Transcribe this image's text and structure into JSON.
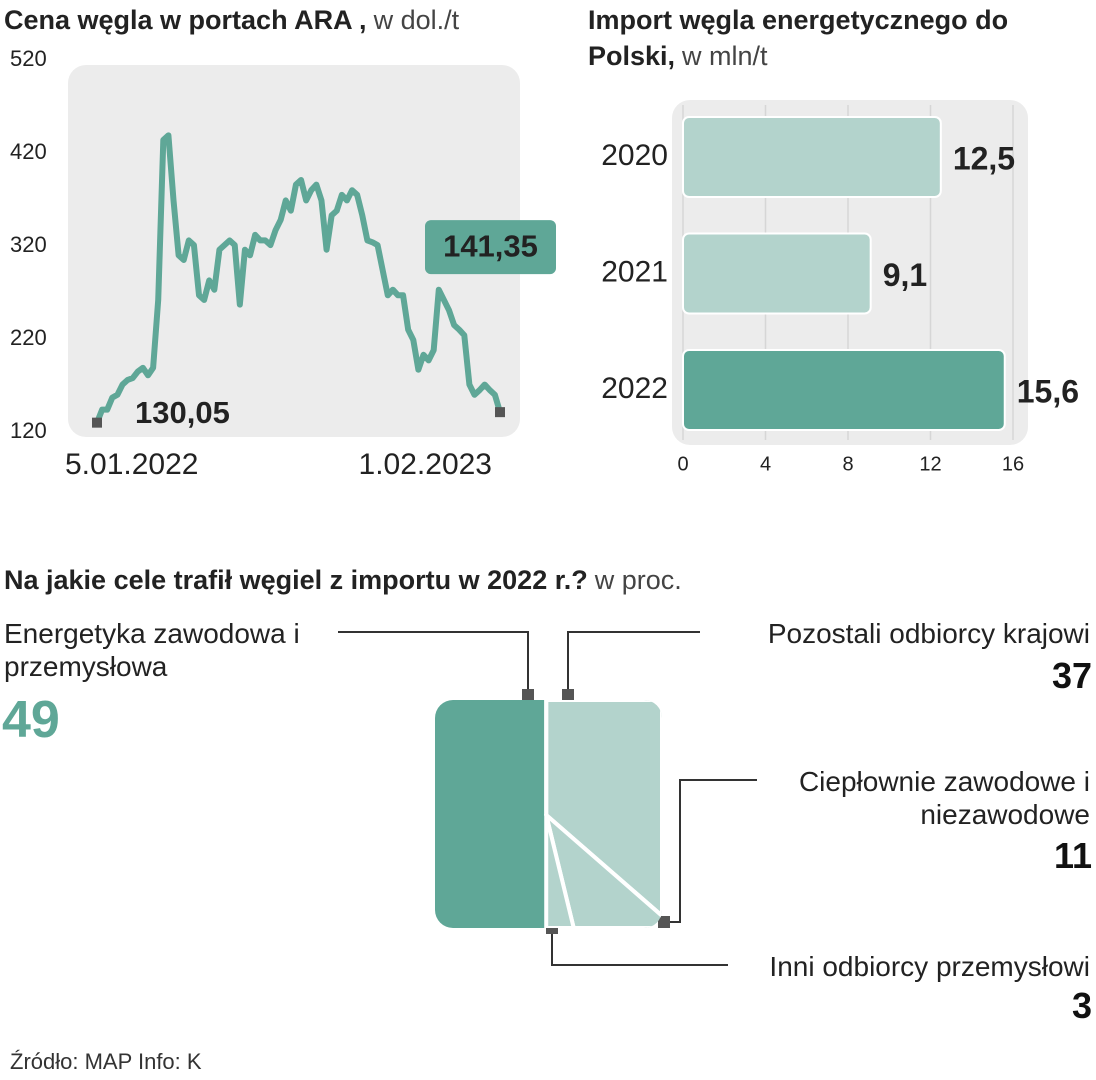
{
  "chart_data": [
    {
      "type": "line",
      "title": "Cena węgla w portach ARA ,",
      "subtitle": "w dol./t",
      "categories": [
        "5.01.2022",
        null,
        null,
        null,
        null,
        null,
        null,
        null,
        null,
        null,
        null,
        null,
        null,
        null,
        null,
        null,
        null,
        null,
        null,
        null,
        null,
        null,
        null,
        null,
        null,
        null,
        null,
        null,
        null,
        null,
        null,
        null,
        null,
        null,
        null,
        null,
        null,
        null,
        null,
        null,
        null,
        null,
        null,
        null,
        null,
        null,
        null,
        null,
        null,
        null,
        null,
        null,
        null,
        null,
        null,
        null,
        null,
        null,
        null,
        null,
        null,
        null,
        null,
        null,
        null,
        null,
        null,
        null,
        null,
        null,
        null,
        null,
        null,
        null,
        null,
        null,
        null,
        null,
        null,
        "1.02.2023"
      ],
      "values": [
        130.05,
        144,
        144,
        157,
        160,
        171,
        176,
        178,
        185,
        189,
        181,
        189,
        262,
        434,
        439,
        369,
        310,
        305,
        326,
        321,
        267,
        262,
        283,
        273,
        316,
        321,
        326,
        321,
        257,
        316,
        310,
        332,
        326,
        326,
        321,
        337,
        348,
        369,
        358,
        386,
        391,
        369,
        380,
        386,
        369,
        316,
        353,
        358,
        375,
        369,
        380,
        375,
        353,
        326,
        324,
        321,
        294,
        267,
        273,
        267,
        267,
        230,
        219,
        187,
        203,
        197,
        208,
        273,
        262,
        251,
        235,
        230,
        224,
        171,
        160,
        165,
        171,
        165,
        160,
        141.35
      ],
      "value_labels": [
        "130,05",
        null,
        null,
        null,
        null,
        null,
        null,
        null,
        null,
        null,
        null,
        null,
        null,
        null,
        null,
        null,
        null,
        null,
        null,
        null,
        null,
        null,
        null,
        null,
        null,
        null,
        null,
        null,
        null,
        null,
        null,
        null,
        null,
        null,
        null,
        null,
        null,
        null,
        null,
        null,
        null,
        null,
        null,
        null,
        null,
        null,
        null,
        null,
        null,
        null,
        null,
        null,
        null,
        null,
        null,
        null,
        null,
        null,
        null,
        null,
        null,
        null,
        null,
        null,
        null,
        null,
        null,
        null,
        null,
        null,
        null,
        null,
        null,
        null,
        null,
        null,
        null,
        null,
        null,
        "141,35"
      ],
      "color": "#5fa797",
      "ylim": [
        120,
        520
      ],
      "yticks": [
        120,
        220,
        320,
        420,
        520
      ]
    },
    {
      "type": "hbar",
      "title": "Import węgla energetycznego do Polski,",
      "subtitle": "w mln/t",
      "categories": [
        "2020",
        "2021",
        "2022"
      ],
      "values": [
        12.5,
        9.1,
        15.6
      ],
      "value_labels": [
        "12,5",
        "9,1",
        "15,6"
      ],
      "colors": [
        "#b3d3cc",
        "#b3d3cc",
        "#5fa797"
      ],
      "xlim": [
        0,
        16
      ],
      "xticks": [
        0,
        4,
        8,
        12,
        16
      ],
      "grid": true
    },
    {
      "type": "fan",
      "title": "Na jakie cele trafił węgiel z importu w 2022 r.?",
      "subtitle": "w proc.",
      "categories": [
        "Energetyka zawodowa i przemysłowa",
        "Pozostali odbiorcy krajowi",
        "Ciepłownie zawodowe i niezawodowe",
        "Inni odbiorcy przemysłowi"
      ],
      "values": [
        49,
        37,
        11,
        3
      ],
      "colors": [
        "#5fa797",
        "#b3d3cc",
        "#b3d3cc",
        "#b3d3cc"
      ]
    }
  ],
  "footer": "Źródło: MAP Info: K"
}
